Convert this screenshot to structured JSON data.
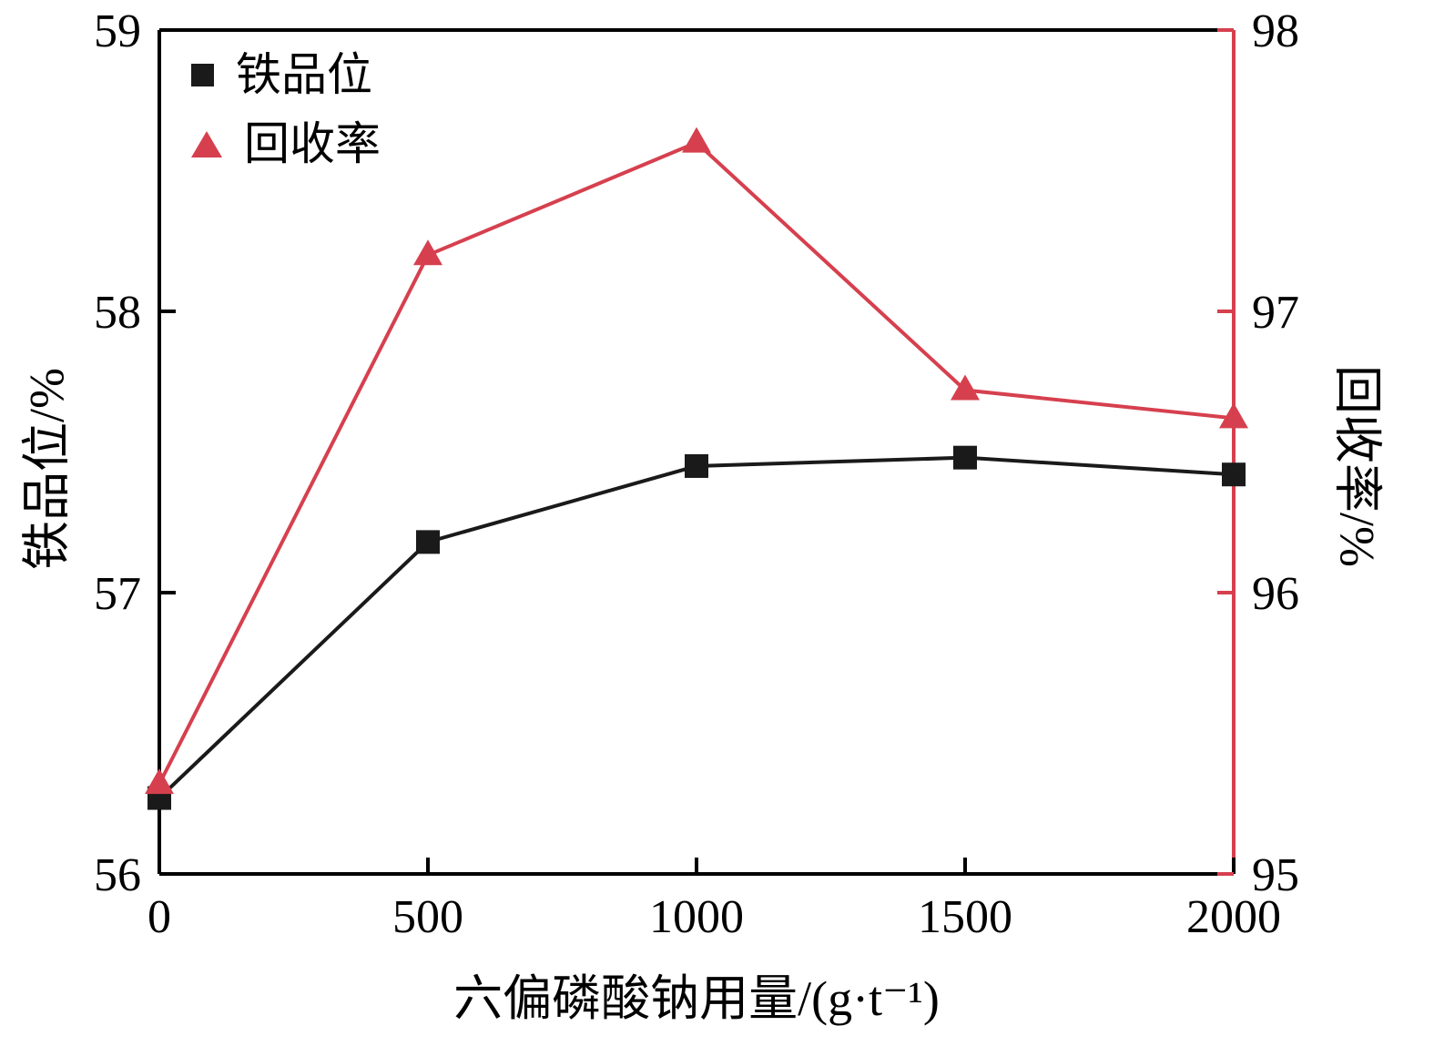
{
  "colors": {
    "background": "#ffffff",
    "axis": "#000000",
    "series_black": "#1a1a1a",
    "accent_red": "#d6404e"
  },
  "chart_data": {
    "type": "line",
    "title": "",
    "xlabel": "六偏磷酸钠用量/(g·t⁻¹)",
    "x": [
      0,
      500,
      1000,
      1500,
      2000
    ],
    "x_range": [
      0,
      2000
    ],
    "x_ticks": [
      0,
      500,
      1000,
      1500,
      2000
    ],
    "left_axis": {
      "label": "铁品位/%",
      "min": 56,
      "max": 59,
      "ticks": [
        56,
        57,
        58,
        59
      ],
      "color": "#000000"
    },
    "right_axis": {
      "label": "回收率/%",
      "min": 95,
      "max": 98,
      "ticks": [
        95,
        96,
        97,
        98
      ],
      "color": "#d6404e"
    },
    "grid": false,
    "legend_position": "top-left",
    "series": [
      {
        "id": "iron-grade",
        "name": "铁品位",
        "axis": "left",
        "marker": "square",
        "color": "#1a1a1a",
        "values": [
          56.27,
          57.18,
          57.45,
          57.48,
          57.42
        ]
      },
      {
        "id": "recovery",
        "name": "回收率",
        "axis": "right",
        "marker": "triangle",
        "color": "#d6404e",
        "values": [
          95.32,
          97.2,
          97.6,
          96.72,
          96.62
        ]
      }
    ]
  }
}
